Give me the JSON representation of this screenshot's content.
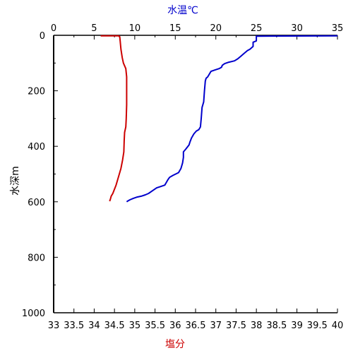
{
  "chart_data": {
    "type": "line",
    "title": "",
    "top_axis": {
      "label": "水温℃",
      "label_color": "#0000cc",
      "range": [
        0,
        35
      ],
      "ticks": [
        0,
        5,
        10,
        15,
        20,
        25,
        30,
        35
      ]
    },
    "bottom_axis": {
      "label": "塩分",
      "label_color": "#cc0000",
      "range": [
        33,
        40
      ],
      "ticks": [
        "33",
        "33.5",
        "34",
        "34.5",
        "35",
        "35.5",
        "36",
        "36.5",
        "37",
        "37.5",
        "38",
        "38.5",
        "39",
        "39.5",
        "40"
      ],
      "tick_values": [
        33,
        33.5,
        34,
        34.5,
        35,
        35.5,
        36,
        36.5,
        37,
        37.5,
        38,
        38.5,
        39,
        39.5,
        40
      ]
    },
    "left_axis": {
      "label": "水深m",
      "range": [
        0,
        1000
      ],
      "inverted": true,
      "ticks": [
        0,
        200,
        400,
        600,
        800,
        1000
      ]
    },
    "series": [
      {
        "axis": "top",
        "color": "#0000cc",
        "points": [
          [
            35,
            2
          ],
          [
            25,
            3
          ],
          [
            25,
            10
          ],
          [
            25,
            20
          ],
          [
            24.6,
            25
          ],
          [
            24.6,
            40
          ],
          [
            24.2,
            50
          ],
          [
            23.9,
            55
          ],
          [
            23.5,
            65
          ],
          [
            23.1,
            75
          ],
          [
            22.7,
            85
          ],
          [
            22.3,
            92
          ],
          [
            21.6,
            97
          ],
          [
            21.1,
            102
          ],
          [
            20.8,
            108
          ],
          [
            20.7,
            115
          ],
          [
            20.4,
            120
          ],
          [
            19.9,
            125
          ],
          [
            19.4,
            130
          ],
          [
            19.2,
            140
          ],
          [
            19.0,
            150
          ],
          [
            18.8,
            155
          ],
          [
            18.7,
            165
          ],
          [
            18.6,
            200
          ],
          [
            18.5,
            240
          ],
          [
            18.3,
            260
          ],
          [
            18.2,
            300
          ],
          [
            18.1,
            330
          ],
          [
            17.9,
            340
          ],
          [
            17.6,
            345
          ],
          [
            17.3,
            355
          ],
          [
            17.0,
            370
          ],
          [
            16.8,
            385
          ],
          [
            16.7,
            395
          ],
          [
            16.3,
            410
          ],
          [
            16.0,
            420
          ],
          [
            16.0,
            440
          ],
          [
            15.9,
            460
          ],
          [
            15.7,
            480
          ],
          [
            15.4,
            495
          ],
          [
            14.7,
            505
          ],
          [
            14.3,
            512
          ],
          [
            14.1,
            520
          ],
          [
            13.9,
            530
          ],
          [
            13.7,
            540
          ],
          [
            13.2,
            545
          ],
          [
            12.7,
            550
          ],
          [
            12.2,
            560
          ],
          [
            11.7,
            570
          ],
          [
            11.3,
            575
          ],
          [
            10.8,
            580
          ],
          [
            10.3,
            583
          ],
          [
            9.8,
            588
          ],
          [
            9.4,
            593
          ],
          [
            9.1,
            598
          ],
          [
            9.0,
            600
          ]
        ]
      },
      {
        "axis": "bottom",
        "color": "#cc0000",
        "points": [
          [
            34.16,
            2
          ],
          [
            34.6,
            2
          ],
          [
            34.63,
            5
          ],
          [
            34.64,
            20
          ],
          [
            34.66,
            50
          ],
          [
            34.69,
            80
          ],
          [
            34.72,
            100
          ],
          [
            34.78,
            120
          ],
          [
            34.8,
            150
          ],
          [
            34.8,
            200
          ],
          [
            34.8,
            250
          ],
          [
            34.79,
            300
          ],
          [
            34.78,
            330
          ],
          [
            34.75,
            350
          ],
          [
            34.74,
            380
          ],
          [
            34.73,
            420
          ],
          [
            34.7,
            450
          ],
          [
            34.66,
            480
          ],
          [
            34.62,
            500
          ],
          [
            34.58,
            520
          ],
          [
            34.54,
            540
          ],
          [
            34.5,
            555
          ],
          [
            34.46,
            570
          ],
          [
            34.42,
            580
          ],
          [
            34.4,
            590
          ],
          [
            34.38,
            598
          ]
        ]
      }
    ],
    "grid": false,
    "legend": "none"
  }
}
